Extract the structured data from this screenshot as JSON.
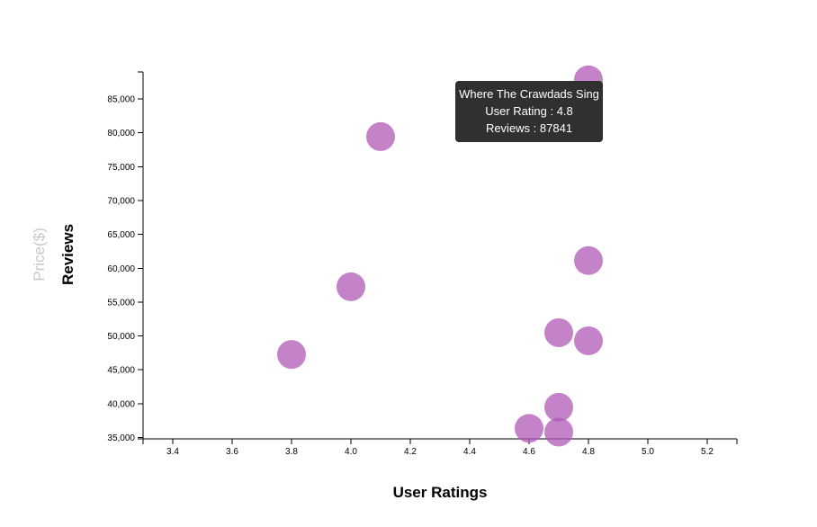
{
  "chart_data": {
    "type": "scatter",
    "xlabel": "User Ratings",
    "ylabel": "Reviews",
    "ylabel_faded": "Price($)",
    "xlim": [
      3.3,
      5.3
    ],
    "ylim": [
      34800,
      89000
    ],
    "x_ticks": [
      3.4,
      3.6,
      3.8,
      4.0,
      4.2,
      4.4,
      4.6,
      4.8,
      5.0,
      5.2
    ],
    "x_tick_labels": [
      "3.4",
      "3.6",
      "3.8",
      "4.0",
      "4.2",
      "4.4",
      "4.6",
      "4.8",
      "5.0",
      "5.2"
    ],
    "y_ticks": [
      35000,
      40000,
      45000,
      50000,
      55000,
      60000,
      65000,
      70000,
      75000,
      80000,
      85000
    ],
    "y_tick_labels": [
      "35,000",
      "40,000",
      "45,000",
      "50,000",
      "55,000",
      "60,000",
      "65,000",
      "70,000",
      "75,000",
      "80,000",
      "85,000"
    ],
    "point_color": "#b05ab5",
    "points": [
      {
        "x": 4.8,
        "y": 87841
      },
      {
        "x": 4.1,
        "y": 79446
      },
      {
        "x": 4.8,
        "y": 61133
      },
      {
        "x": 4.0,
        "y": 57271
      },
      {
        "x": 4.7,
        "y": 50482
      },
      {
        "x": 4.8,
        "y": 49288
      },
      {
        "x": 3.8,
        "y": 47265
      },
      {
        "x": 4.7,
        "y": 39459
      },
      {
        "x": 4.6,
        "y": 36348
      },
      {
        "x": 4.7,
        "y": 35799
      }
    ],
    "grid": false,
    "legend": "none"
  },
  "tooltip": {
    "title": "Where The Crawdads Sing",
    "rating_text": "User Rating : 4.8",
    "reviews_text": "Reviews : 87841"
  }
}
